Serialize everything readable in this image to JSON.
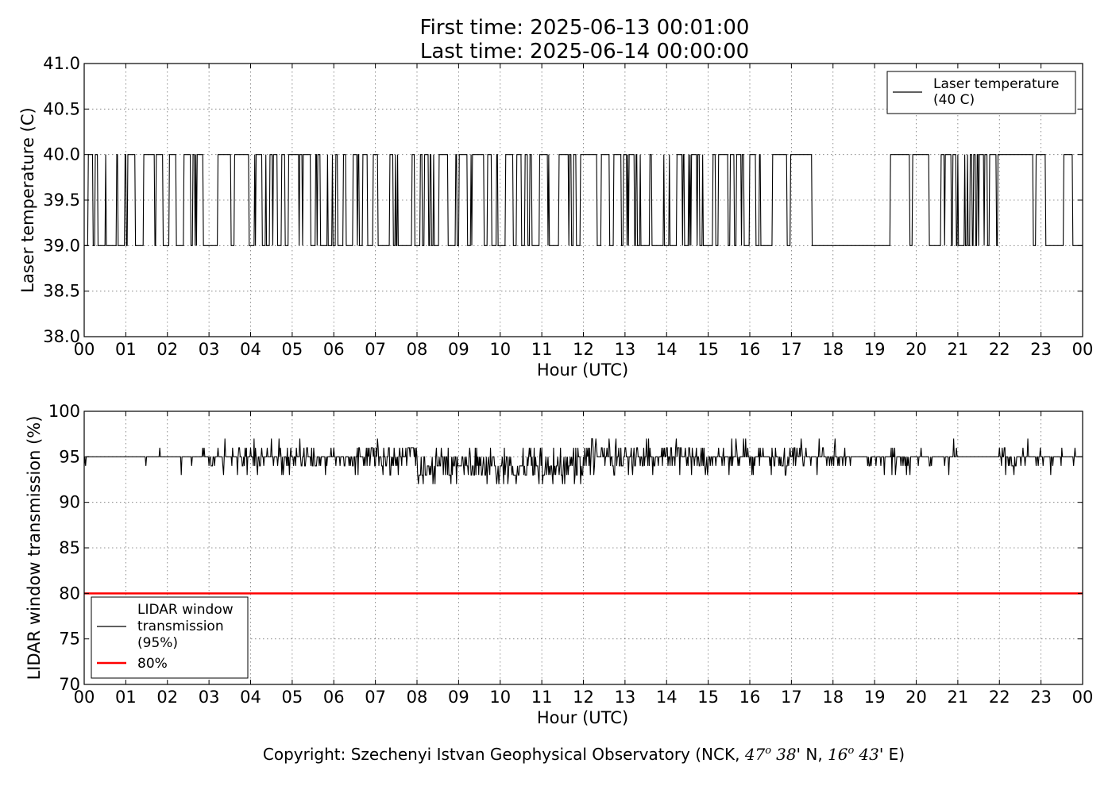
{
  "figure": {
    "title_line1": "First time: 2025-06-13 00:01:00",
    "title_line2": "Last time: 2025-06-14 00:00:00",
    "copyright_prefix": "Copyright: Szechenyi Istvan Geophysical Observatory (NCK, ",
    "lat_deg": "47",
    "deg_mark": "o",
    "lat_min": "38",
    "lat_suffix": "' N, ",
    "lon_deg": "16",
    "lon_min": "43",
    "lon_suffix": "' E)"
  },
  "chart_data": [
    {
      "type": "line",
      "xlabel": "Hour (UTC)",
      "ylabel": "Laser temperature (C)",
      "xlim": [
        0,
        24
      ],
      "ylim": [
        38.0,
        41.0
      ],
      "x_tick_labels": [
        "00",
        "01",
        "02",
        "03",
        "04",
        "05",
        "06",
        "07",
        "08",
        "09",
        "10",
        "11",
        "12",
        "13",
        "14",
        "15",
        "16",
        "17",
        "18",
        "19",
        "20",
        "21",
        "22",
        "23",
        "00"
      ],
      "y_tick_labels": [
        "38.0",
        "38.5",
        "39.0",
        "39.5",
        "40.0",
        "40.5",
        "41.0"
      ],
      "y_ticks": [
        38.0,
        38.5,
        39.0,
        39.5,
        40.0,
        40.5,
        41.0
      ],
      "grid": true,
      "legend_position": "top-right",
      "series": [
        {
          "name": "Laser temperature\n(40 C)",
          "legend_lines": [
            "Laser temperature",
            "(40 C)"
          ],
          "color": "#000000",
          "sampling_interval_min": 1,
          "levels": [
            39.0,
            40.0
          ],
          "switching_density_by_hour": [
            0.45,
            0.35,
            0.35,
            0.15,
            0.45,
            0.4,
            0.2,
            0.35,
            0.3,
            0.4,
            0.45,
            0.3,
            0.1,
            0.35,
            0.45,
            0.4,
            0.4,
            0.05,
            0.04,
            0.04,
            0.08,
            0.6,
            0.1,
            0.05,
            0.5
          ]
        }
      ]
    },
    {
      "type": "line",
      "xlabel": "Hour (UTC)",
      "ylabel": "LIDAR window transmission (%)",
      "xlim": [
        0,
        24
      ],
      "ylim": [
        70,
        100
      ],
      "x_tick_labels": [
        "00",
        "01",
        "02",
        "03",
        "04",
        "05",
        "06",
        "07",
        "08",
        "09",
        "10",
        "11",
        "12",
        "13",
        "14",
        "15",
        "16",
        "17",
        "18",
        "19",
        "20",
        "21",
        "22",
        "23",
        "00"
      ],
      "y_tick_labels": [
        "70",
        "75",
        "80",
        "85",
        "90",
        "95",
        "100"
      ],
      "y_ticks": [
        70,
        75,
        80,
        85,
        90,
        95,
        100
      ],
      "grid": true,
      "legend_position": "bottom-left",
      "series": [
        {
          "name": "LIDAR window\ntransmission\n(95%)",
          "legend_lines": [
            "LIDAR window",
            "transmission",
            "(95%)"
          ],
          "color": "#000000",
          "sampling_interval_min": 1,
          "baseline_by_hour": [
            95,
            95,
            95,
            95,
            95,
            95,
            95,
            94.5,
            94,
            93.5,
            93.5,
            94,
            94.5,
            94.5,
            95,
            95,
            95,
            95,
            95,
            95,
            95,
            95,
            94.5,
            95,
            95
          ],
          "noise_by_hour": [
            0,
            0.05,
            0.1,
            0.5,
            0.6,
            0.7,
            0.8,
            1,
            1.1,
            1.2,
            1.2,
            1.2,
            1.1,
            1,
            0.9,
            0.8,
            0.7,
            0.6,
            0.5,
            0.3,
            0.3,
            0,
            0.5,
            0.2,
            0
          ],
          "min_value": 91,
          "max_value": 97
        },
        {
          "name": "80%",
          "legend_lines": [
            "80%"
          ],
          "color": "#ff0000",
          "constant_value": 80
        }
      ]
    }
  ]
}
